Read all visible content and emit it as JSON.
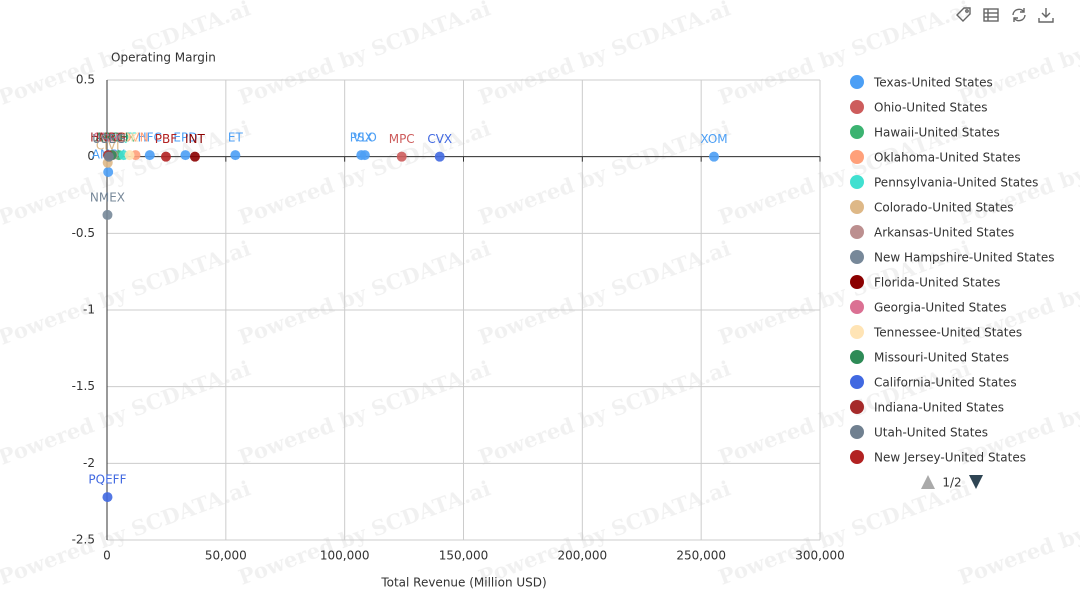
{
  "chart_data": {
    "type": "scatter",
    "y_axis_label": "Operating Margin",
    "x_axis_label": "Total Revenue (Million USD)",
    "watermark": "Powered by SCDATA.ai",
    "legend_page": "1/2",
    "legend_position": "right",
    "grid": true,
    "xlim": [
      0,
      300000
    ],
    "xticks": [
      0,
      {
        "value": 50000,
        "label": "50,000"
      },
      {
        "value": 100000,
        "label": "100,000"
      },
      {
        "value": 150000,
        "label": "150,000"
      },
      {
        "value": 200000,
        "label": "200,000"
      },
      {
        "value": 250000,
        "label": "250,000"
      },
      {
        "value": 300000,
        "label": "300,000"
      }
    ],
    "ylim": [
      -2.5,
      0.5
    ],
    "yticks": [
      0.5,
      0,
      -0.5,
      -1,
      -1.5,
      -2,
      -2.5
    ],
    "series": [
      {
        "name": "Texas-United States",
        "color": "#4c9ff5",
        "x": [
          255400,
          107000,
          108500,
          54000,
          33000,
          18000,
          500
        ],
        "values": [
          0.0,
          0.01,
          0.01,
          0.01,
          0.01,
          0.01,
          -0.1
        ],
        "labels": [
          "XOM",
          "PSX",
          "VLO",
          "ET",
          "EPD",
          "HFC",
          "AMPY"
        ]
      },
      {
        "name": "Ohio-United States",
        "color": "#cd5c5c",
        "x": [
          124000
        ],
        "values": [
          0.0
        ],
        "labels": [
          "MPC"
        ]
      },
      {
        "name": "Hawaii-United States",
        "color": "#3cb371",
        "x": [
          5000
        ],
        "values": [
          0.01
        ],
        "labels": [
          "PARR"
        ]
      },
      {
        "name": "Oklahoma-United States",
        "color": "#ffa07a",
        "x": [
          12000
        ],
        "values": [
          0.01
        ],
        "labels": [
          "DVN"
        ]
      },
      {
        "name": "Pennsylvania-United States",
        "color": "#40e0d0",
        "x": [
          7000
        ],
        "values": [
          0.01
        ],
        "labels": [
          "EQT"
        ]
      },
      {
        "name": "Colorado-United States",
        "color": "#deb887",
        "x": [
          300
        ],
        "values": [
          -0.04
        ],
        "labels": [
          "CIVI"
        ]
      },
      {
        "name": "Arkansas-United States",
        "color": "#bc8f8f",
        "x": [
          2500
        ],
        "values": [
          0.01
        ],
        "labels": [
          "MUR"
        ]
      },
      {
        "name": "New Hampshire-United States",
        "color": "#778899",
        "x": [
          200
        ],
        "values": [
          -0.38
        ],
        "labels": [
          "NMEX"
        ]
      },
      {
        "name": "Florida-United States",
        "color": "#8b0000",
        "x": [
          37000
        ],
        "values": [
          0.0
        ],
        "labels": [
          "INT"
        ]
      },
      {
        "name": "Georgia-United States",
        "color": "#db7093",
        "x": [
          1500
        ],
        "values": [
          0.01
        ],
        "labels": [
          "SNMP"
        ]
      },
      {
        "name": "Tennessee-United States",
        "color": "#ffe4b5",
        "x": [
          9500
        ],
        "values": [
          0.01
        ],
        "labels": [
          "DK"
        ]
      },
      {
        "name": "Missouri-United States",
        "color": "#2e8b57",
        "x": [
          2000
        ],
        "values": [
          0.01
        ],
        "labels": [
          "ARCH"
        ]
      },
      {
        "name": "California-United States",
        "color": "#4169e1",
        "x": [
          140000,
          200
        ],
        "values": [
          0.0,
          -2.22
        ],
        "labels": [
          "CVX",
          "PQEFF"
        ]
      },
      {
        "name": "Indiana-United States",
        "color": "#a52a2a",
        "x": [
          400
        ],
        "values": [
          0.01
        ],
        "labels": [
          "HNRG"
        ]
      },
      {
        "name": "Utah-United States",
        "color": "#708090",
        "x": [
          800
        ],
        "values": [
          0.0
        ],
        "labels": [
          "USEG"
        ]
      },
      {
        "name": "New Jersey-United States",
        "color": "#b22222",
        "x": [
          24800
        ],
        "values": [
          0.0
        ],
        "labels": [
          "PBF"
        ]
      }
    ]
  }
}
